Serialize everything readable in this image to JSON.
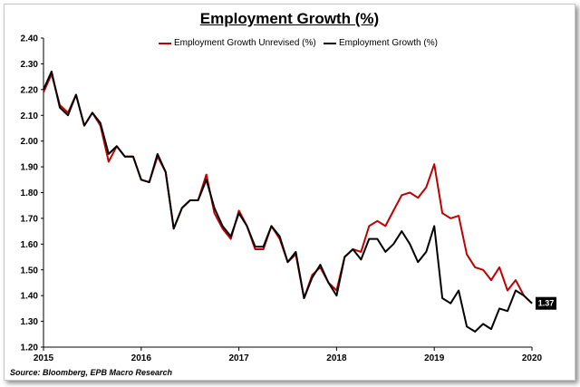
{
  "chart_data": {
    "type": "line",
    "title": "Employment Growth (%)",
    "xlabel": "",
    "ylabel": "",
    "ylim": [
      1.2,
      2.4
    ],
    "xlim": [
      2015.0,
      2020.0
    ],
    "yticks": [
      "1.20",
      "1.30",
      "1.40",
      "1.50",
      "1.60",
      "1.70",
      "1.80",
      "1.90",
      "2.00",
      "2.10",
      "2.20",
      "2.30",
      "2.40"
    ],
    "xticks": [
      "2015",
      "2016",
      "2017",
      "2018",
      "2019",
      "2020"
    ],
    "grid": false,
    "legend_position": "top",
    "end_label": "1.37",
    "series": [
      {
        "name": "Employment Growth Unrevised (%)",
        "color": "#c00000",
        "x": [
          2015.0,
          2015.083,
          2015.167,
          2015.25,
          2015.333,
          2015.417,
          2015.5,
          2015.583,
          2015.667,
          2015.75,
          2015.833,
          2015.917,
          2016.0,
          2016.083,
          2016.167,
          2016.25,
          2016.333,
          2016.417,
          2016.5,
          2016.583,
          2016.667,
          2016.75,
          2016.833,
          2016.917,
          2017.0,
          2017.083,
          2017.167,
          2017.25,
          2017.333,
          2017.417,
          2017.5,
          2017.583,
          2017.667,
          2017.75,
          2017.833,
          2017.917,
          2018.0,
          2018.083,
          2018.167,
          2018.25,
          2018.333,
          2018.417,
          2018.5,
          2018.583,
          2018.667,
          2018.75,
          2018.833,
          2018.917,
          2019.0,
          2019.083,
          2019.167,
          2019.25,
          2019.333,
          2019.417,
          2019.5,
          2019.583,
          2019.667,
          2019.75,
          2019.833,
          2019.917,
          2020.0
        ],
        "values": [
          2.19,
          2.26,
          2.14,
          2.11,
          2.18,
          2.06,
          2.11,
          2.06,
          1.92,
          1.98,
          1.94,
          1.94,
          1.85,
          1.84,
          1.94,
          1.88,
          1.66,
          1.74,
          1.77,
          1.77,
          1.87,
          1.72,
          1.66,
          1.62,
          1.73,
          1.67,
          1.58,
          1.58,
          1.67,
          1.62,
          1.53,
          1.56,
          1.39,
          1.48,
          1.51,
          1.45,
          1.42,
          1.55,
          1.58,
          1.57,
          1.67,
          1.69,
          1.67,
          1.73,
          1.79,
          1.8,
          1.78,
          1.82,
          1.91,
          1.72,
          1.7,
          1.71,
          1.56,
          1.51,
          1.5,
          1.46,
          1.51,
          1.42,
          1.46,
          1.4,
          1.37
        ]
      },
      {
        "name": "Employment Growth (%)",
        "color": "#000000",
        "x": [
          2015.0,
          2015.083,
          2015.167,
          2015.25,
          2015.333,
          2015.417,
          2015.5,
          2015.583,
          2015.667,
          2015.75,
          2015.833,
          2015.917,
          2016.0,
          2016.083,
          2016.167,
          2016.25,
          2016.333,
          2016.417,
          2016.5,
          2016.583,
          2016.667,
          2016.75,
          2016.833,
          2016.917,
          2017.0,
          2017.083,
          2017.167,
          2017.25,
          2017.333,
          2017.417,
          2017.5,
          2017.583,
          2017.667,
          2017.75,
          2017.833,
          2017.917,
          2018.0,
          2018.083,
          2018.167,
          2018.25,
          2018.333,
          2018.417,
          2018.5,
          2018.583,
          2018.667,
          2018.75,
          2018.833,
          2018.917,
          2019.0,
          2019.083,
          2019.167,
          2019.25,
          2019.333,
          2019.417,
          2019.5,
          2019.583,
          2019.667,
          2019.75,
          2019.833,
          2019.917,
          2020.0
        ],
        "values": [
          2.2,
          2.27,
          2.13,
          2.1,
          2.18,
          2.06,
          2.11,
          2.07,
          1.95,
          1.98,
          1.94,
          1.94,
          1.85,
          1.84,
          1.95,
          1.88,
          1.66,
          1.74,
          1.77,
          1.77,
          1.85,
          1.74,
          1.67,
          1.63,
          1.72,
          1.67,
          1.59,
          1.59,
          1.67,
          1.63,
          1.53,
          1.57,
          1.39,
          1.47,
          1.52,
          1.45,
          1.4,
          1.55,
          1.58,
          1.54,
          1.62,
          1.62,
          1.57,
          1.6,
          1.65,
          1.6,
          1.53,
          1.57,
          1.67,
          1.39,
          1.37,
          1.42,
          1.28,
          1.26,
          1.29,
          1.27,
          1.35,
          1.34,
          1.42,
          1.4,
          1.37
        ]
      }
    ]
  },
  "source_text": "Source: Bloomberg, EPB Macro Research"
}
